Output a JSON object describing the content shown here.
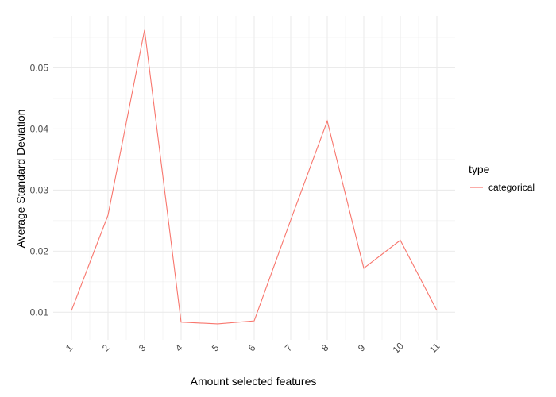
{
  "chart_data": {
    "type": "line",
    "xlabel": "Amount selected features",
    "ylabel": "Average Standard Deviation",
    "x": [
      1,
      2,
      3,
      4,
      5,
      6,
      7,
      8,
      9,
      10,
      11
    ],
    "x_tick_labels": [
      "1",
      "2",
      "3",
      "4",
      "5",
      "6",
      "7",
      "8",
      "9",
      "10",
      "11"
    ],
    "y_ticks": [
      0.01,
      0.02,
      0.03,
      0.04,
      0.05
    ],
    "y_tick_labels": [
      "0.01",
      "0.02",
      "0.03",
      "0.04",
      "0.05"
    ],
    "xlim": [
      0.5,
      11.5
    ],
    "ylim": [
      0.0055,
      0.0585
    ],
    "grid": true,
    "legend": {
      "title": "type",
      "placement": "right"
    },
    "series": [
      {
        "name": "categorical",
        "color": "#F8766D",
        "values": [
          0.0103,
          0.0259,
          0.0562,
          0.0084,
          0.0081,
          0.0086,
          0.0251,
          0.0413,
          0.0172,
          0.0218,
          0.0103
        ]
      }
    ]
  }
}
